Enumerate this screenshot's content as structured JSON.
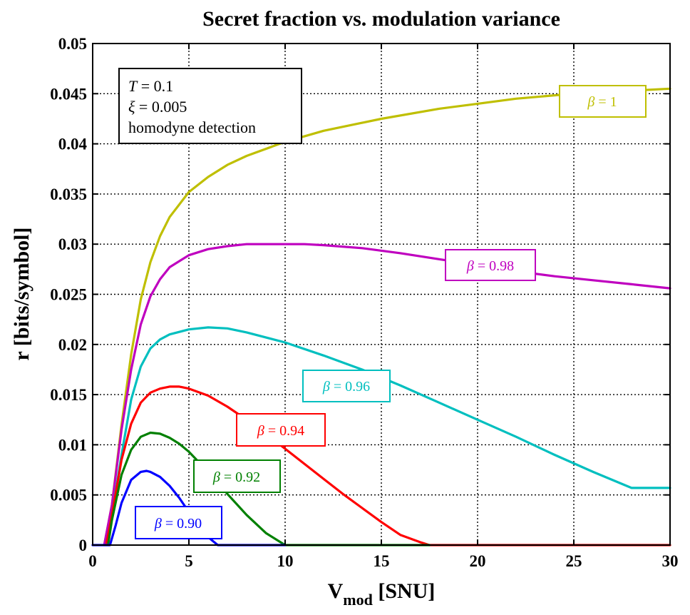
{
  "chart_data": {
    "type": "line",
    "title": "Secret fraction vs. modulation variance",
    "xlabel_main": "V",
    "xlabel_sub": "mod",
    "xlabel_units": " [SNU]",
    "ylabel": "r [bits/symbol]",
    "xlim": [
      0,
      30
    ],
    "ylim": [
      0,
      0.05
    ],
    "grid": true,
    "x_ticks": [
      0,
      5,
      10,
      15,
      20,
      25,
      30
    ],
    "x_tick_labels": [
      "0",
      "5",
      "10",
      "15",
      "20",
      "25",
      "30"
    ],
    "y_ticks": [
      0,
      0.005,
      0.01,
      0.015,
      0.02,
      0.025,
      0.03,
      0.035,
      0.04,
      0.045,
      0.05
    ],
    "y_tick_labels": [
      "0",
      "0.005",
      "0.01",
      "0.015",
      "0.02",
      "0.025",
      "0.03",
      "0.035",
      "0.04",
      "0.045",
      "0.05"
    ],
    "annotation": {
      "line1_var": "T",
      "line1_val": " = 0.1",
      "line2_var": "ξ",
      "line2_val": " = 0.005",
      "line3": "homodyne detection"
    },
    "series": [
      {
        "name": "β = 1",
        "symbol": "β",
        "value_text": " = 1",
        "color": "#bfbf00",
        "x": [
          0.6,
          1,
          1.5,
          2,
          2.5,
          3,
          3.5,
          4,
          5,
          6,
          7,
          8,
          10,
          12,
          15,
          18,
          20,
          22,
          25,
          28,
          30
        ],
        "y": [
          0,
          0.004,
          0.012,
          0.019,
          0.0245,
          0.0282,
          0.0308,
          0.0327,
          0.0352,
          0.0367,
          0.0379,
          0.0388,
          0.0402,
          0.0413,
          0.0425,
          0.0435,
          0.044,
          0.0445,
          0.045,
          0.0453,
          0.0455
        ]
      },
      {
        "name": "β = 0.98",
        "symbol": "β",
        "value_text": " = 0.98",
        "color": "#bf00bf",
        "x": [
          0.6,
          1,
          1.5,
          2,
          2.5,
          3,
          3.5,
          4,
          5,
          6,
          7,
          8,
          9,
          10,
          11,
          12,
          14,
          16,
          18,
          20,
          22,
          24,
          26,
          28,
          30
        ],
        "y": [
          0,
          0.004,
          0.0115,
          0.0175,
          0.022,
          0.0248,
          0.0265,
          0.0277,
          0.0289,
          0.0295,
          0.0298,
          0.03,
          0.03,
          0.03,
          0.03,
          0.0299,
          0.0296,
          0.0291,
          0.0285,
          0.0279,
          0.0273,
          0.0268,
          0.0264,
          0.026,
          0.0256
        ]
      },
      {
        "name": "β = 0.96",
        "symbol": "β",
        "value_text": " = 0.96",
        "color": "#00bfbf",
        "x": [
          0.7,
          1,
          1.5,
          2,
          2.5,
          3,
          3.5,
          4,
          5,
          6,
          7,
          8,
          10,
          12,
          14,
          16,
          18,
          20,
          22,
          24,
          26,
          28,
          30
        ],
        "y": [
          0,
          0.003,
          0.009,
          0.0145,
          0.0178,
          0.0196,
          0.0205,
          0.021,
          0.0215,
          0.0217,
          0.0216,
          0.0212,
          0.0202,
          0.0189,
          0.0175,
          0.0159,
          0.0142,
          0.0125,
          0.0108,
          0.009,
          0.0073,
          0.0057,
          0.0057
        ]
      },
      {
        "name": "β = 0.94",
        "symbol": "β",
        "value_text": " = 0.94",
        "color": "#ff0000",
        "x": [
          0.7,
          1,
          1.5,
          2,
          2.5,
          3,
          3.5,
          4,
          4.5,
          5,
          6,
          7,
          8,
          9,
          10,
          11,
          12,
          13,
          14,
          15,
          16,
          17,
          17.5,
          20,
          25,
          30
        ],
        "y": [
          0,
          0.003,
          0.0085,
          0.0121,
          0.0142,
          0.0152,
          0.0156,
          0.0158,
          0.0158,
          0.0156,
          0.0149,
          0.0138,
          0.0125,
          0.0111,
          0.0096,
          0.0081,
          0.0066,
          0.0051,
          0.0037,
          0.0023,
          0.001,
          0.0003,
          0,
          0,
          0,
          0
        ]
      },
      {
        "name": "β = 0.92",
        "symbol": "β",
        "value_text": " = 0.92",
        "color": "#008000",
        "x": [
          0.8,
          1,
          1.5,
          2,
          2.5,
          3,
          3.5,
          4,
          4.5,
          5,
          6,
          7,
          8,
          9,
          10,
          12,
          15,
          17.5
        ],
        "y": [
          0,
          0.0025,
          0.007,
          0.0095,
          0.0108,
          0.0112,
          0.0111,
          0.0107,
          0.0101,
          0.0093,
          0.0073,
          0.0051,
          0.003,
          0.0012,
          0,
          0,
          0,
          0
        ]
      },
      {
        "name": "β = 0.90",
        "symbol": "β",
        "value_text": " = 0.90",
        "color": "#0000ff",
        "x": [
          0,
          0.9,
          1.2,
          1.5,
          2,
          2.5,
          2.8,
          3,
          3.5,
          4,
          4.5,
          5,
          5.5,
          6,
          6.5,
          10
        ],
        "y": [
          0,
          0,
          0.002,
          0.0042,
          0.0065,
          0.0073,
          0.0074,
          0.0073,
          0.0068,
          0.0059,
          0.0047,
          0.0033,
          0.002,
          0.0008,
          0,
          0
        ]
      }
    ]
  }
}
